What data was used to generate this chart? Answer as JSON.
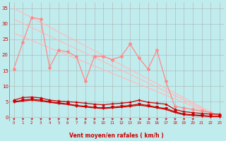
{
  "xlabel": "Vent moyen/en rafales ( km/h )",
  "bg_color": "#c0ecee",
  "grid_color": "#b0b0b0",
  "xlim": [
    -0.5,
    23.5
  ],
  "ylim": [
    -1,
    37
  ],
  "yticks": [
    0,
    5,
    10,
    15,
    20,
    25,
    30,
    35
  ],
  "xticks": [
    0,
    1,
    2,
    3,
    4,
    5,
    6,
    7,
    8,
    9,
    10,
    11,
    12,
    13,
    14,
    15,
    16,
    17,
    18,
    19,
    20,
    21,
    22,
    23
  ],
  "lines": [
    {
      "color": "#ffbbbb",
      "lw": 0.9,
      "marker": "None",
      "ms": 0,
      "x": [
        0,
        23
      ],
      "y": [
        35.0,
        0.2
      ]
    },
    {
      "color": "#ffbbbb",
      "lw": 0.9,
      "marker": "None",
      "ms": 0,
      "x": [
        0,
        23
      ],
      "y": [
        31.5,
        0.1
      ]
    },
    {
      "color": "#ffbbbb",
      "lw": 0.9,
      "marker": "None",
      "ms": 0,
      "x": [
        0,
        23
      ],
      "y": [
        27.0,
        0.05
      ]
    },
    {
      "color": "#ff8888",
      "lw": 0.9,
      "marker": "D",
      "ms": 2.0,
      "mfc": "#ff8888",
      "x": [
        0,
        1,
        2,
        3,
        4,
        5,
        6,
        7,
        8,
        9,
        10,
        11,
        12,
        13,
        14,
        15,
        16,
        17,
        18,
        19,
        20,
        21,
        22,
        23
      ],
      "y": [
        15.5,
        24.0,
        32.0,
        31.5,
        16.0,
        21.5,
        21.0,
        19.5,
        11.5,
        19.5,
        19.5,
        18.5,
        19.5,
        23.5,
        19.0,
        15.5,
        21.5,
        11.5,
        3.5,
        3.0,
        2.5,
        2.0,
        1.5,
        0.5
      ]
    },
    {
      "color": "#cc0000",
      "lw": 0.9,
      "marker": "+",
      "ms": 3.5,
      "mfc": "#cc0000",
      "x": [
        0,
        1,
        2,
        3,
        4,
        5,
        6,
        7,
        8,
        9,
        10,
        11,
        12,
        13,
        14,
        15,
        16,
        17,
        18,
        19,
        20,
        21,
        22,
        23
      ],
      "y": [
        5.5,
        6.3,
        6.5,
        6.2,
        5.5,
        5.2,
        5.0,
        4.8,
        4.5,
        4.2,
        4.0,
        4.3,
        4.5,
        4.8,
        5.5,
        4.8,
        4.5,
        4.2,
        2.5,
        1.8,
        1.5,
        1.2,
        1.0,
        1.0
      ]
    },
    {
      "color": "#cc0000",
      "lw": 0.9,
      "marker": "v",
      "ms": 2.5,
      "mfc": "#cc0000",
      "x": [
        0,
        1,
        2,
        3,
        4,
        5,
        6,
        7,
        8,
        9,
        10,
        11,
        12,
        13,
        14,
        15,
        16,
        17,
        18,
        19,
        20,
        21,
        22,
        23
      ],
      "y": [
        5.0,
        5.5,
        5.8,
        5.5,
        5.0,
        4.6,
        4.3,
        3.8,
        3.5,
        3.2,
        3.0,
        3.2,
        3.5,
        3.8,
        4.2,
        3.8,
        3.2,
        2.8,
        1.8,
        1.0,
        0.8,
        0.6,
        0.3,
        0.3
      ]
    },
    {
      "color": "#cc0000",
      "lw": 0.9,
      "marker": "None",
      "ms": 0,
      "mfc": "#cc0000",
      "x": [
        0,
        1,
        2,
        3,
        4,
        5,
        6,
        7,
        8,
        9,
        10,
        11,
        12,
        13,
        14,
        15,
        16,
        17,
        18,
        19,
        20,
        21,
        22,
        23
      ],
      "y": [
        4.8,
        5.2,
        5.5,
        5.2,
        4.8,
        4.4,
        4.1,
        3.6,
        3.3,
        3.0,
        2.8,
        3.0,
        3.2,
        3.5,
        3.9,
        3.5,
        3.0,
        2.5,
        1.5,
        0.8,
        0.6,
        0.4,
        0.2,
        0.2
      ]
    }
  ],
  "arrow_angles_deg": [
    50,
    50,
    50,
    50,
    50,
    50,
    50,
    50,
    50,
    50,
    50,
    50,
    50,
    50,
    10,
    10,
    50,
    50,
    50,
    50,
    50
  ],
  "arrow_color": "#cc0000",
  "tick_color": "#cc0000",
  "xlabel_color": "#cc0000",
  "xlabel_fontsize": 5.5,
  "xlabel_fontweight": "bold",
  "ytick_fontsize": 5,
  "xtick_fontsize": 4
}
